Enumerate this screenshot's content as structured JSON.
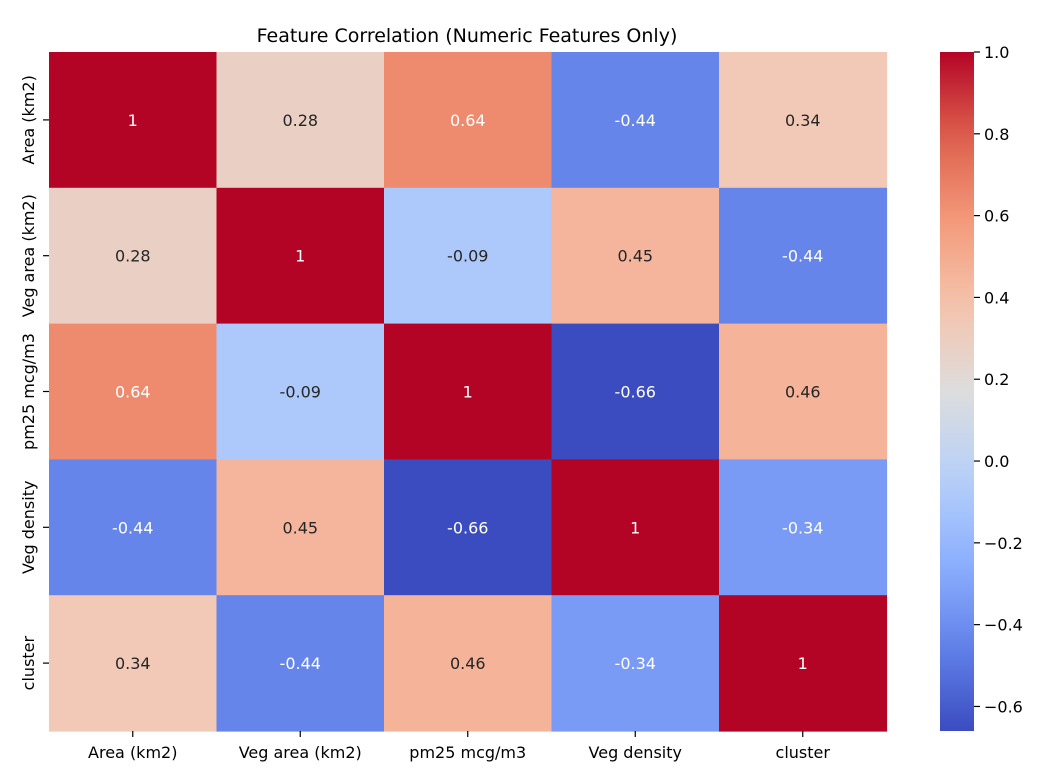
{
  "chart_data": {
    "type": "heatmap",
    "title": "Feature Correlation (Numeric Features Only)",
    "xlabel": "",
    "ylabel": "",
    "x_categories": [
      "Area (km2)",
      "Veg area (km2)",
      "pm25 mcg/m3",
      "Veg density",
      "cluster"
    ],
    "y_categories": [
      "Area (km2)",
      "Veg area (km2)",
      "pm25 mcg/m3",
      "Veg density",
      "cluster"
    ],
    "values": [
      [
        1,
        0.28,
        0.64,
        -0.44,
        0.34
      ],
      [
        0.28,
        1,
        -0.09,
        0.45,
        -0.44
      ],
      [
        0.64,
        -0.09,
        1,
        -0.66,
        0.46
      ],
      [
        -0.44,
        0.45,
        -0.66,
        1,
        -0.34
      ],
      [
        0.34,
        -0.44,
        0.46,
        -0.34,
        1
      ]
    ],
    "annotations": [
      [
        "1",
        "0.28",
        "0.64",
        "-0.44",
        "0.34"
      ],
      [
        "0.28",
        "1",
        "-0.09",
        "0.45",
        "-0.44"
      ],
      [
        "0.64",
        "-0.09",
        "1",
        "-0.66",
        "0.46"
      ],
      [
        "-0.44",
        "0.45",
        "-0.66",
        "1",
        "-0.34"
      ],
      [
        "0.34",
        "-0.44",
        "0.46",
        "-0.34",
        "1"
      ]
    ],
    "colormap": "coolwarm",
    "colorbar": {
      "range": [
        -0.66,
        1.0
      ],
      "ticks": [
        1.0,
        0.8,
        0.6,
        0.4,
        0.2,
        0.0,
        -0.2,
        -0.4,
        -0.6
      ],
      "tick_labels": [
        "1.0",
        "0.8",
        "0.6",
        "0.4",
        "0.2",
        "0.0",
        "−0.2",
        "−0.4",
        "−0.6"
      ]
    },
    "colors": {
      "cool_end": "#3b4cc0",
      "neutral": "#dddddd",
      "warm_end": "#b40426",
      "text_dark": "#262626",
      "text_light": "#ffffff"
    }
  }
}
